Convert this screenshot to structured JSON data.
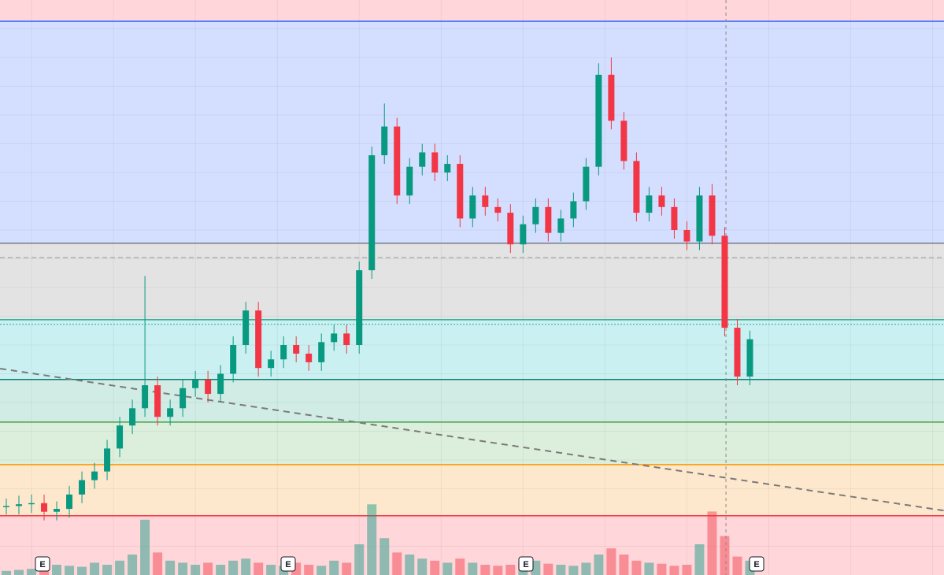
{
  "chart_data": {
    "type": "candlestick",
    "xlim": [
      -0.5,
      74.4
    ],
    "ylim": [
      0,
      100
    ],
    "grid": true,
    "xticks": [
      2,
      8.5,
      15,
      21.5,
      28,
      34.5,
      41,
      47.5,
      54,
      60.5,
      67,
      73.5
    ],
    "yticks": [
      5,
      10,
      15,
      20,
      25,
      30,
      35,
      40,
      45,
      50,
      55,
      60,
      65,
      70,
      75,
      80,
      85,
      90,
      95
    ],
    "up_color": "#089981",
    "down_color": "#f23645",
    "x": [
      0,
      1,
      2,
      3,
      4,
      5,
      6,
      7,
      8,
      9,
      10,
      11,
      12,
      13,
      14,
      15,
      16,
      17,
      18,
      19,
      20,
      21,
      22,
      23,
      24,
      25,
      26,
      27,
      28,
      29,
      30,
      31,
      32,
      33,
      34,
      35,
      36,
      37,
      38,
      39,
      40,
      41,
      42,
      43,
      44,
      45,
      46,
      47,
      48,
      49,
      50,
      51,
      52,
      53,
      54,
      55,
      56,
      57,
      58,
      59
    ],
    "open": [
      11.8,
      12.0,
      12.3,
      12.5,
      11.0,
      11.5,
      14.0,
      16.5,
      18.0,
      22.0,
      26.0,
      29.0,
      33.0,
      27.5,
      29.0,
      32.5,
      34.0,
      31.5,
      35.0,
      40.0,
      46.0,
      36.0,
      37.5,
      40.0,
      38.5,
      37.0,
      40.5,
      42.0,
      40.0,
      53.0,
      73.0,
      78.0,
      66.0,
      71.0,
      73.5,
      70.0,
      71.5,
      62.0,
      66.0,
      64.0,
      63.0,
      57.5,
      61.0,
      64.0,
      59.5,
      62.0,
      65.0,
      71.0,
      87.0,
      79.0,
      72.0,
      63.0,
      66.0,
      64.0,
      60.0,
      58.0,
      66.0,
      59.0,
      43.0,
      34.5
    ],
    "high": [
      13.3,
      13.8,
      14.0,
      14.0,
      12.8,
      15.5,
      18.0,
      19.5,
      23.5,
      27.5,
      30.5,
      52.0,
      34.5,
      30.5,
      34.0,
      35.5,
      35.5,
      36.5,
      41.5,
      47.5,
      47.5,
      39.0,
      41.5,
      41.5,
      40.0,
      42.0,
      43.5,
      43.5,
      54.5,
      74.5,
      82.0,
      79.5,
      72.5,
      75.0,
      75.0,
      73.0,
      73.0,
      67.5,
      67.5,
      65.5,
      64.5,
      62.5,
      65.5,
      65.5,
      63.5,
      66.5,
      72.5,
      89.0,
      90.0,
      80.5,
      73.5,
      67.5,
      67.5,
      65.5,
      61.5,
      67.5,
      68.0,
      60.5,
      44.5,
      42.5
    ],
    "low": [
      10.5,
      10.5,
      10.8,
      9.5,
      9.5,
      10.0,
      12.5,
      15.0,
      16.5,
      20.5,
      24.5,
      27.5,
      26.0,
      26.0,
      27.5,
      31.0,
      30.0,
      30.0,
      33.5,
      38.5,
      34.5,
      34.5,
      36.0,
      37.0,
      35.5,
      35.5,
      39.0,
      38.5,
      38.5,
      51.5,
      71.5,
      64.5,
      64.5,
      69.5,
      68.5,
      68.5,
      60.5,
      60.5,
      62.5,
      61.5,
      56.0,
      56.0,
      59.5,
      58.0,
      58.0,
      60.5,
      63.5,
      69.5,
      77.5,
      70.5,
      61.5,
      61.5,
      62.5,
      58.5,
      56.5,
      56.5,
      57.5,
      41.5,
      33.0,
      33.0
    ],
    "close": [
      12.0,
      12.3,
      12.5,
      11.0,
      11.5,
      14.0,
      16.5,
      18.0,
      22.0,
      26.0,
      29.0,
      33.0,
      27.5,
      29.0,
      32.5,
      34.0,
      31.5,
      35.0,
      40.0,
      46.0,
      36.0,
      37.5,
      40.0,
      38.5,
      37.0,
      40.5,
      42.0,
      40.0,
      53.0,
      73.0,
      78.0,
      66.0,
      71.0,
      73.5,
      70.0,
      71.5,
      62.0,
      66.0,
      64.0,
      63.0,
      57.5,
      61.0,
      64.0,
      59.5,
      62.0,
      65.0,
      71.0,
      87.0,
      79.0,
      72.0,
      63.0,
      66.0,
      64.0,
      60.0,
      58.0,
      66.0,
      59.0,
      43.0,
      34.5,
      41.0
    ],
    "volume_lim": [
      0,
      100
    ],
    "volume": [
      4,
      5,
      6,
      8,
      10,
      9,
      8,
      12,
      10,
      14,
      20,
      54,
      22,
      14,
      12,
      10,
      12,
      10,
      14,
      16,
      12,
      10,
      9,
      12,
      10,
      9,
      14,
      12,
      30,
      69,
      36,
      22,
      20,
      16,
      14,
      12,
      16,
      12,
      10,
      9,
      10,
      12,
      14,
      11,
      10,
      9,
      12,
      20,
      26,
      20,
      14,
      12,
      11,
      9,
      10,
      30,
      62,
      38,
      18,
      14
    ],
    "levels": [
      {
        "value": 96.3,
        "color": "#2962ff",
        "dash": "none"
      },
      {
        "value": 57.7,
        "color": "#787b86",
        "dash": "none"
      },
      {
        "value": 44.4,
        "color": "#22ab94",
        "dash": "none"
      },
      {
        "value": 34.0,
        "color": "#0e7c6b",
        "dash": "none"
      },
      {
        "value": 26.6,
        "color": "#43a047",
        "dash": "none"
      },
      {
        "value": 19.2,
        "color": "#ff9800",
        "dash": "none"
      },
      {
        "value": 10.3,
        "color": "#f23645",
        "dash": "none"
      },
      {
        "value": 55.2,
        "color": "#9598a1",
        "dash": "6 4"
      },
      {
        "value": 43.6,
        "color": "#22ab94",
        "dash": "2 2"
      }
    ],
    "band_colors": [
      "#ffd6d9",
      "#d4defe",
      "#e3e3e3",
      "#cbf0f2",
      "#d0ece4",
      "#dcefdc",
      "#fde8cd",
      "#ffd6d9"
    ],
    "trendline": {
      "x": [
        -0.5,
        74.4
      ],
      "y": [
        35.9,
        11.2
      ],
      "color": "#7a7a7a"
    },
    "crosshair_x": 57.1,
    "earnings_markers": [
      "E",
      "E",
      "E",
      "E"
    ]
  }
}
